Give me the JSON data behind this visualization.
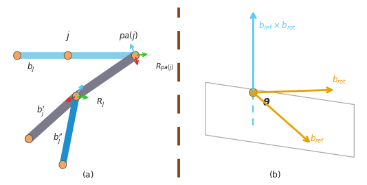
{
  "fig_width": 5.34,
  "fig_height": 2.7,
  "dpi": 100,
  "bg_color": "#ffffff",
  "joint_color": "#F4A460",
  "joint_dark": "#DAA520",
  "bone_lightblue": "#87CEEB",
  "bone_darkblue": "#1E8FCC",
  "bone_gray": "#7a7a8a",
  "arrow_blue": "#5BC8F5",
  "arrow_green": "#22CC22",
  "arrow_red": "#EE2222",
  "arrow_orange": "#E8A000",
  "divider_color": "#8B4513",
  "text_dark": "#222222"
}
